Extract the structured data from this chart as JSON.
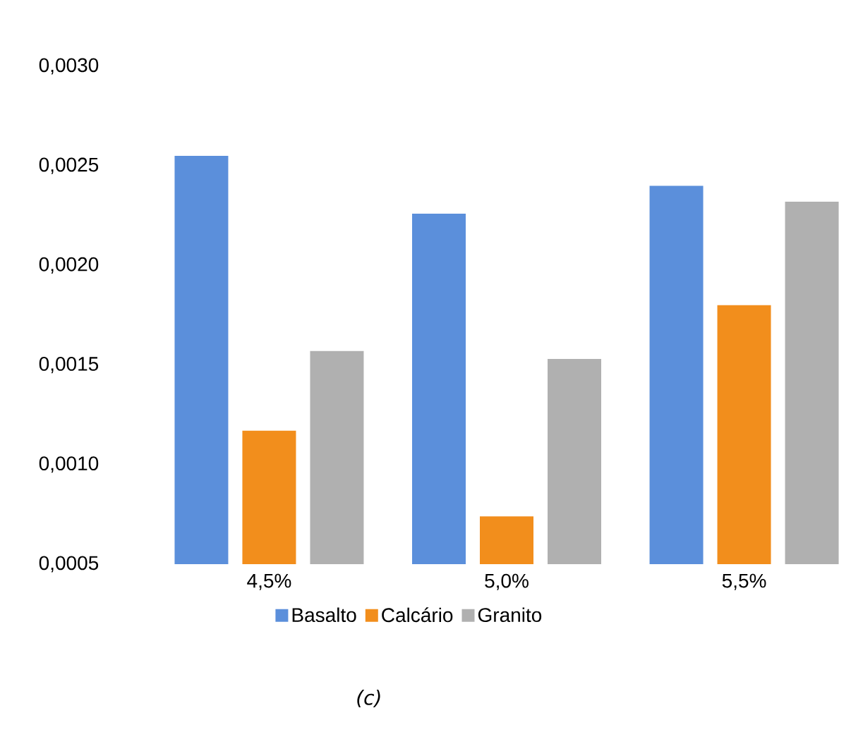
{
  "chart_data": {
    "type": "bar",
    "categories": [
      "4,5%",
      "5,0%",
      "5,5%"
    ],
    "series": [
      {
        "name": "Basalto",
        "color": "#5b8fdb",
        "values": [
          0.00255,
          0.00226,
          0.0024
        ]
      },
      {
        "name": "Calcário",
        "color": "#f28e1c",
        "values": [
          0.00117,
          0.00074,
          0.0018
        ]
      },
      {
        "name": "Granito",
        "color": "#b0b0b0",
        "values": [
          0.00157,
          0.00153,
          0.00232
        ]
      }
    ],
    "ylim": [
      0.0005,
      0.003
    ],
    "yticks": [
      {
        "value": 0.0005,
        "label": "0,0005"
      },
      {
        "value": 0.001,
        "label": "0,0010"
      },
      {
        "value": 0.0015,
        "label": "0,0015"
      },
      {
        "value": 0.002,
        "label": "0,0020"
      },
      {
        "value": 0.0025,
        "label": "0,0025"
      },
      {
        "value": 0.003,
        "label": "0,0030"
      }
    ],
    "legend": "bottom",
    "annotations": [
      "(c)"
    ]
  }
}
